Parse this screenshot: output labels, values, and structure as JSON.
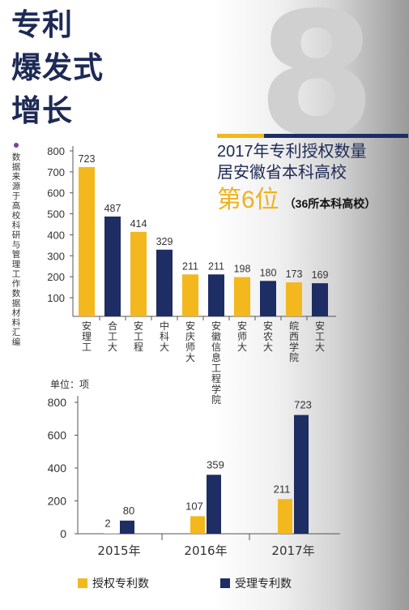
{
  "headline": [
    "专利",
    "爆发式",
    "增长"
  ],
  "big_number": "8",
  "rank_text": {
    "line1": "2017年专利授权数量",
    "line2": "居安徽省本科高校",
    "rank": "第6位",
    "note": "（36所本科高校）"
  },
  "source_note": "数据来源于高校科研与管理工作数据材料汇编",
  "colors": {
    "yellow": "#f2b81e",
    "navy": "#1e2d63",
    "text": "#1e2a55"
  },
  "chart_data": [
    {
      "type": "bar",
      "title": "",
      "xlabel": "",
      "ylabel": "",
      "ylim": [
        0,
        800
      ],
      "yticks": [
        100,
        200,
        300,
        400,
        500,
        600,
        700,
        800
      ],
      "categories": [
        "安理工",
        "合工大",
        "安工程",
        "中科大",
        "安庆师大",
        "安徽信息工程学院",
        "安师大",
        "安农大",
        "皖西学院",
        "安工大"
      ],
      "values": [
        723,
        487,
        414,
        329,
        211,
        211,
        198,
        180,
        173,
        169
      ],
      "bar_colors": [
        "yellow",
        "navy",
        "yellow",
        "navy",
        "yellow",
        "navy",
        "yellow",
        "navy",
        "yellow",
        "navy"
      ]
    },
    {
      "type": "bar",
      "title": "",
      "unit_label": "单位：项",
      "ylim": [
        0,
        800
      ],
      "yticks": [
        0,
        200,
        400,
        600,
        800
      ],
      "categories": [
        "2015年",
        "2016年",
        "2017年"
      ],
      "series": [
        {
          "name": "授权专利数",
          "color": "yellow",
          "values": [
            2,
            107,
            211
          ]
        },
        {
          "name": "受理专利数",
          "color": "navy",
          "values": [
            80,
            359,
            723
          ]
        }
      ],
      "legend": "bottom"
    }
  ]
}
